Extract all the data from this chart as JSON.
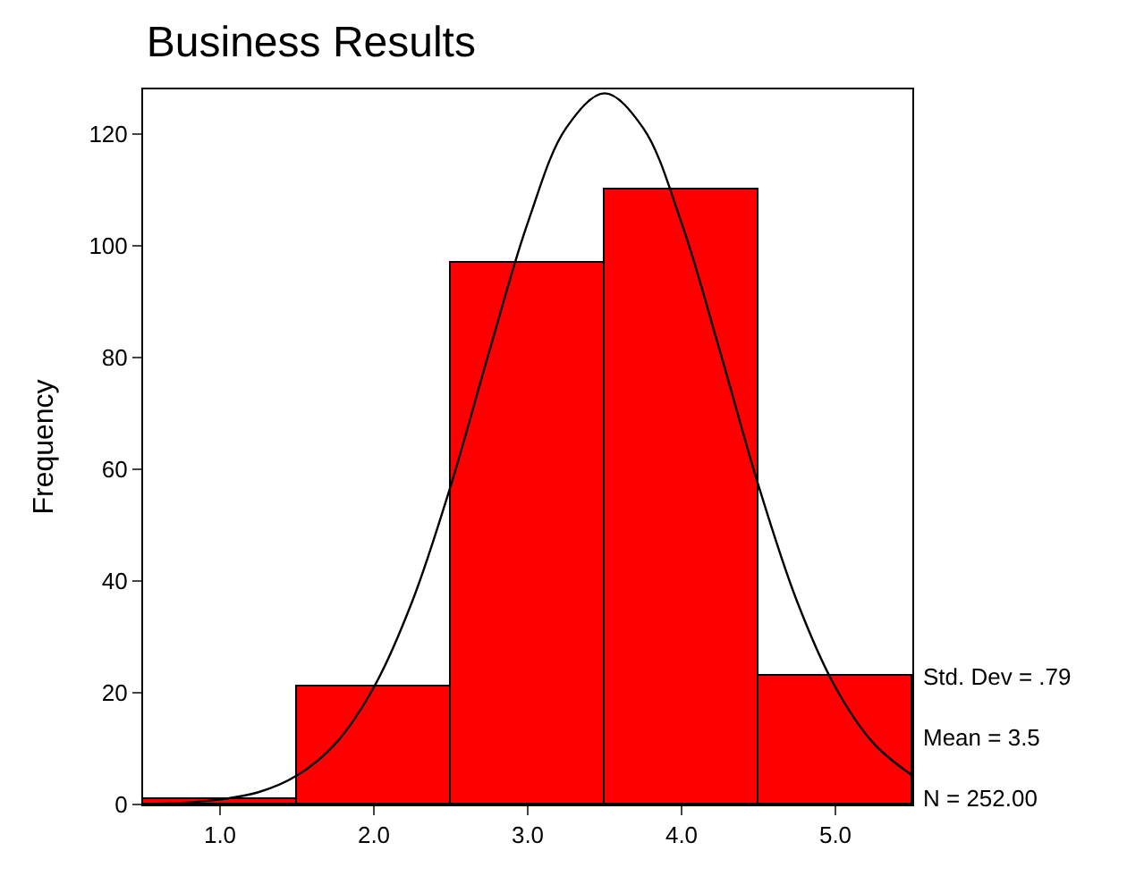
{
  "chart_data": {
    "type": "histogram",
    "title": "Business Results",
    "ylabel": "Frequency",
    "bins": [
      0.5,
      1.5,
      2.5,
      3.5,
      4.5,
      5.5
    ],
    "values": [
      1,
      21,
      97,
      110,
      23
    ],
    "color": "#ff0000",
    "series": [
      {
        "type": "line",
        "color": "#000000",
        "x": [
          0.5,
          0.75,
          1.0,
          1.25,
          1.5,
          1.75,
          2.0,
          2.25,
          2.5,
          2.75,
          3.0,
          3.25,
          3.5,
          3.75,
          4.0,
          4.25,
          4.5,
          4.75,
          5.0,
          5.25,
          5.5
        ],
        "values": [
          0.1,
          0.3,
          0.9,
          2.2,
          5.2,
          10.9,
          21.0,
          36.4,
          57.1,
          81.1,
          104.1,
          121.1,
          127.3,
          121.1,
          104.1,
          81.1,
          57.1,
          36.4,
          21.0,
          10.9,
          5.2
        ]
      }
    ],
    "xlim": [
      0.5,
      5.5
    ],
    "xticks": [
      {
        "value": 1,
        "label": "1.0"
      },
      {
        "value": 2,
        "label": "2.0"
      },
      {
        "value": 3,
        "label": "3.0"
      },
      {
        "value": 4,
        "label": "4.0"
      },
      {
        "value": 5,
        "label": "5.0"
      }
    ],
    "ylim": [
      0,
      128
    ],
    "yticks": [
      0,
      20,
      40,
      60,
      80,
      100,
      120
    ],
    "annotations": [
      "Std. Dev = .79",
      "Mean = 3.5",
      "N = 252.00"
    ]
  }
}
